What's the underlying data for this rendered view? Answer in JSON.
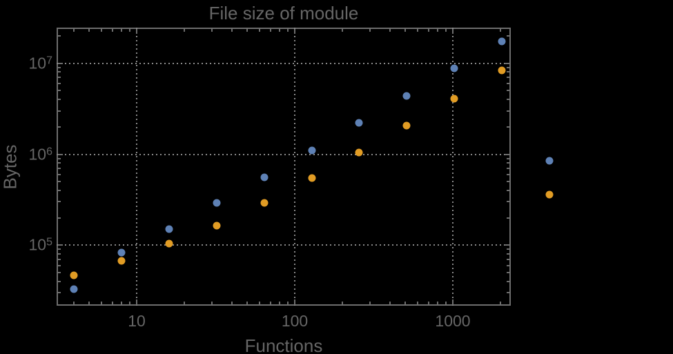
{
  "title": "File size of module",
  "background_color": "#000000",
  "frame_color": "#6e6e6e",
  "grid_color": "#8a8a8a",
  "text_color": "#666666",
  "chart_data": {
    "type": "scatter",
    "title": "File size of module",
    "xlabel": "Functions",
    "ylabel": "Bytes",
    "x_scale": "log",
    "y_scale": "log",
    "xlim": [
      3.1,
      2300
    ],
    "ylim": [
      21000,
      25000000
    ],
    "grid": "dotted lines at decade ticks, frame on all four sides, ticks inward",
    "legend": "none",
    "x": [
      4,
      8,
      16,
      32,
      64,
      128,
      256,
      512,
      1024,
      2048,
      4096
    ],
    "series": [
      {
        "name": "series-1-blue",
        "color": "#5e81b5",
        "values": [
          33000,
          83000,
          150000,
          290000,
          560000,
          1100000,
          2200000,
          4400000,
          8800000,
          17500000,
          840000
        ]
      },
      {
        "name": "series-2-orange",
        "color": "#e19c24",
        "values": [
          47000,
          67000,
          105000,
          165000,
          290000,
          550000,
          1050000,
          2050000,
          4100000,
          8400000,
          360000
        ]
      }
    ],
    "x_major_ticks": [
      {
        "value": 10,
        "label": "10"
      },
      {
        "value": 100,
        "label": "100"
      },
      {
        "value": 1000,
        "label": "1000"
      }
    ],
    "y_major_ticks": [
      {
        "value": 100000,
        "base": "10",
        "exp": "5"
      },
      {
        "value": 1000000,
        "base": "10",
        "exp": "6"
      },
      {
        "value": 10000000,
        "base": "10",
        "exp": "7"
      }
    ],
    "x_minor_ticks": [
      4,
      5,
      6,
      7,
      8,
      9,
      20,
      30,
      40,
      50,
      60,
      70,
      80,
      90,
      200,
      300,
      400,
      500,
      600,
      700,
      800,
      900,
      2000
    ],
    "y_minor_ticks": [
      30000,
      40000,
      50000,
      60000,
      70000,
      80000,
      90000,
      200000,
      300000,
      400000,
      500000,
      600000,
      700000,
      800000,
      900000,
      2000000,
      3000000,
      4000000,
      5000000,
      6000000,
      7000000,
      8000000,
      9000000,
      20000000
    ]
  }
}
